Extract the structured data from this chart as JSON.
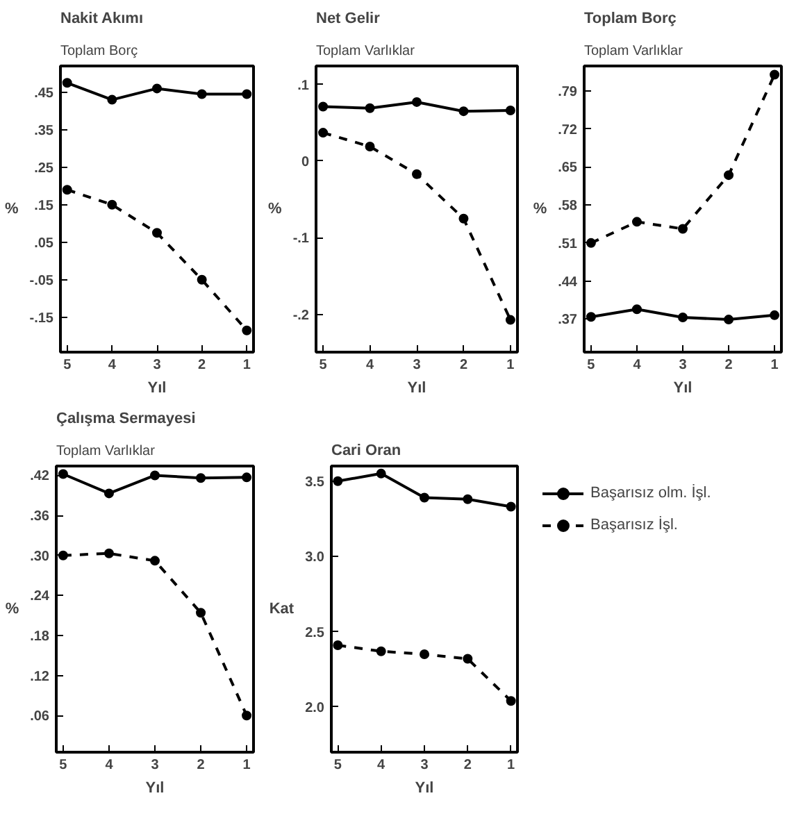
{
  "chart_data": [
    {
      "type": "line",
      "title": "Nakit Akımı",
      "subtitle": "Toplam Borç",
      "ylabel": "%",
      "xlabel": "Yıl",
      "categories": [
        "5",
        "4",
        "3",
        "2",
        "1"
      ],
      "ylim": [
        -0.243,
        0.52
      ],
      "yticks": [
        {
          "value": 0.45,
          "label": ".45"
        },
        {
          "value": 0.35,
          "label": ".35"
        },
        {
          "value": 0.25,
          "label": ".25"
        },
        {
          "value": 0.15,
          "label": ".15"
        },
        {
          "value": 0.05,
          "label": ".05"
        },
        {
          "value": -0.05,
          "label": "-.05"
        },
        {
          "value": -0.15,
          "label": "-.15"
        }
      ],
      "marker": "circle",
      "grid": false,
      "legend": false,
      "series": [
        {
          "color": "#000000",
          "line_style": "solid",
          "values": [
            0.475,
            0.43,
            0.46,
            0.445,
            0.445
          ]
        },
        {
          "color": "#000000",
          "line_style": "dashed",
          "values": [
            0.19,
            0.15,
            0.075,
            -0.05,
            -0.185
          ]
        }
      ]
    },
    {
      "type": "line",
      "title": "Net Gelir",
      "subtitle": "Toplam Varlıklar",
      "ylabel": "%",
      "xlabel": "Yıl",
      "categories": [
        "5",
        "4",
        "3",
        "2",
        "1"
      ],
      "ylim": [
        -0.249,
        0.124
      ],
      "yticks": [
        {
          "value": 0.1,
          "label": ".1"
        },
        {
          "value": 0,
          "label": "0"
        },
        {
          "value": -0.1,
          "label": "-.1"
        },
        {
          "value": -0.2,
          "label": "-.2"
        }
      ],
      "marker": "circle",
      "grid": false,
      "legend": false,
      "series": [
        {
          "color": "#000000",
          "line_style": "solid",
          "values": [
            0.071,
            0.069,
            0.077,
            0.065,
            0.066
          ]
        },
        {
          "color": "#000000",
          "line_style": "dashed",
          "values": [
            0.037,
            0.019,
            -0.017,
            -0.075,
            -0.207
          ]
        }
      ]
    },
    {
      "type": "line",
      "title": "Toplam Borç",
      "subtitle": "Toplam Varlıklar",
      "ylabel": "%",
      "xlabel": "Yıl",
      "categories": [
        "5",
        "4",
        "3",
        "2",
        "1"
      ],
      "ylim": [
        0.309,
        0.836
      ],
      "yticks": [
        {
          "value": 0.79,
          "label": ".79"
        },
        {
          "value": 0.72,
          "label": ".72"
        },
        {
          "value": 0.65,
          "label": ".65"
        },
        {
          "value": 0.58,
          "label": ".58"
        },
        {
          "value": 0.51,
          "label": ".51"
        },
        {
          "value": 0.44,
          "label": ".44"
        },
        {
          "value": 0.37,
          "label": ".37"
        }
      ],
      "marker": "circle",
      "grid": false,
      "legend": false,
      "series": [
        {
          "color": "#000000",
          "line_style": "solid",
          "values": [
            0.374,
            0.388,
            0.373,
            0.369,
            0.377
          ]
        },
        {
          "color": "#000000",
          "line_style": "dashed",
          "values": [
            0.51,
            0.549,
            0.536,
            0.635,
            0.82
          ]
        }
      ]
    },
    {
      "type": "line",
      "title": "Çalışma Sermayesi",
      "subtitle": "Toplam Varlıklar",
      "ylabel": "%",
      "xlabel": "Yıl",
      "categories": [
        "5",
        "4",
        "3",
        "2",
        "1"
      ],
      "ylim": [
        0.005,
        0.434
      ],
      "yticks": [
        {
          "value": 0.42,
          "label": ".42"
        },
        {
          "value": 0.36,
          "label": ".36"
        },
        {
          "value": 0.3,
          "label": ".30"
        },
        {
          "value": 0.24,
          "label": ".24"
        },
        {
          "value": 0.18,
          "label": ".18"
        },
        {
          "value": 0.12,
          "label": ".12"
        },
        {
          "value": 0.06,
          "label": ".06"
        }
      ],
      "marker": "circle",
      "grid": false,
      "legend": false,
      "series": [
        {
          "color": "#000000",
          "line_style": "solid",
          "values": [
            0.422,
            0.393,
            0.42,
            0.416,
            0.417
          ]
        },
        {
          "color": "#000000",
          "line_style": "dashed",
          "values": [
            0.3,
            0.303,
            0.292,
            0.214,
            0.06
          ]
        }
      ]
    },
    {
      "type": "line",
      "title": "Cari Oran",
      "ylabel": "Kat",
      "xlabel": "Yıl",
      "categories": [
        "5",
        "4",
        "3",
        "2",
        "1"
      ],
      "ylim": [
        1.7,
        3.6
      ],
      "yticks": [
        {
          "value": 3.5,
          "label": "3.5"
        },
        {
          "value": 3.0,
          "label": "3.0"
        },
        {
          "value": 2.5,
          "label": "2.5"
        },
        {
          "value": 2.0,
          "label": "2.0"
        }
      ],
      "marker": "circle",
      "grid": false,
      "legend": "right",
      "series": [
        {
          "name": "Başarısız olm. İşl.",
          "color": "#000000",
          "line_style": "solid",
          "values": [
            3.5,
            3.55,
            3.39,
            3.38,
            3.33
          ]
        },
        {
          "name": "Başarısız İşl.",
          "color": "#000000",
          "line_style": "dashed",
          "values": [
            2.41,
            2.37,
            2.35,
            2.32,
            2.04
          ]
        }
      ]
    }
  ]
}
